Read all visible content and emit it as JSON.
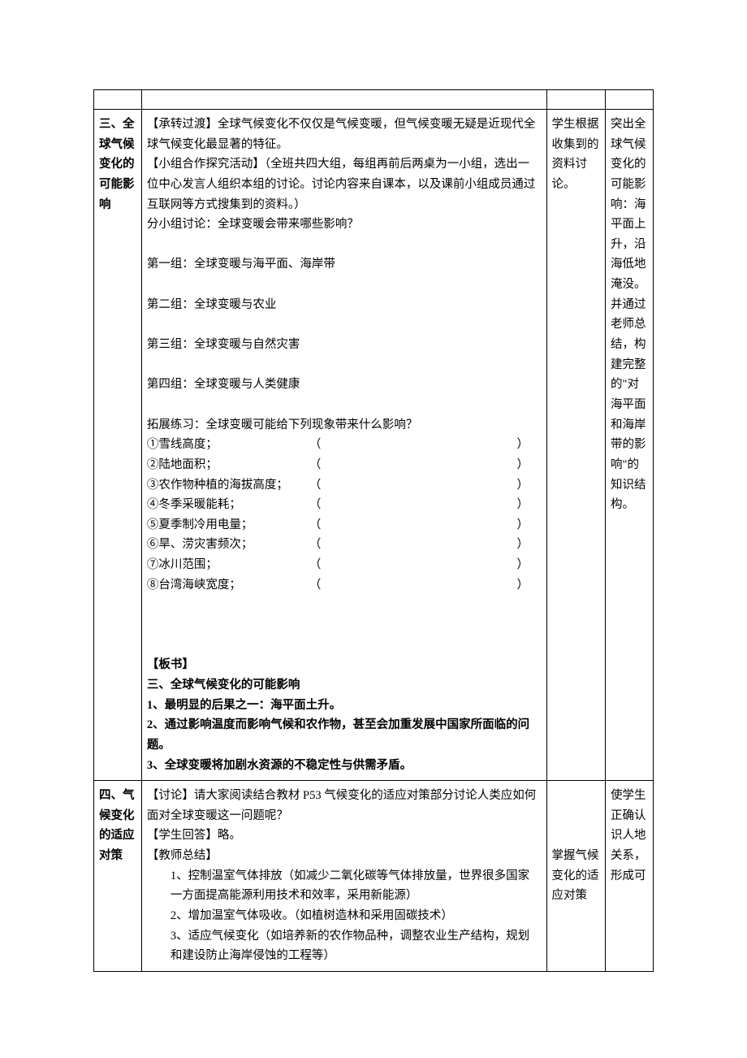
{
  "row1": {
    "col1": "三、全球气候变化的可能影响",
    "col2": {
      "p1": "【承转过渡】全球气候变化不仅仅是气候变暖，但气候变暖无疑是近现代全球气候变化最显著的特征。",
      "p2": "【小组合作探究活动】（全班共四大组，每组再前后两桌为一小组，选出一位中心发言人组织本组的讨论。讨论内容来自课本，以及课前小组成员通过互联网等方式搜集到的资料。）",
      "p3": "分小组讨论：全球变暖会带来哪些影响？",
      "g1": "第一组：全球变暖与海平面、海岸带",
      "g2": "第二组：全球变暖与农业",
      "g3": "第三组：全球变暖与自然灾害",
      "g4": "第四组：全球变暖与人类健康",
      "ex_intro": "拓展练习：全球变暖可能给下列现象带来什么影响？",
      "ex1": "①雪线高度；",
      "ex2": "②陆地面积；",
      "ex3": "③农作物种植的海拔高度；",
      "ex4": "④冬季采暖能耗；",
      "ex5": "⑤夏季制冷用电量；",
      "ex6": "⑥旱、涝灾害频次；",
      "ex7": "⑦冰川范围；",
      "ex8": "⑧台湾海峡宽度；",
      "open": "（",
      "close": "）",
      "bs_label": "【板书】",
      "bs_title": "三、全球气候变化的可能影响",
      "bs1": "1、最明显的后果之一：海平面土升。",
      "bs2": "2、通过影响温度而影响气候和农作物，甚至会加重发展中国家所面临的问题。",
      "bs3": "3、全球变暖将加剧水资源的不稳定性与供需矛盾。"
    },
    "col3": "学生根据收集到的资料讨论。",
    "col4": "突出全球气候变化的可能影响：海平面上升，沿海低地淹没。并通过老师总结，构建完整的\"对海平面和海岸带的影响\"的知识结构。"
  },
  "row2": {
    "col1": "四、气候变化的适应对策",
    "col2": {
      "p1": "【讨论】请大家阅读结合教材 P53 气候变化的适应对策部分讨论人类应如何面对全球变暖这一问题呢？",
      "p2": "【学生回答】略。",
      "p3": "【教师总结】",
      "i1": "1、控制温室气体排放（如减少二氧化碳等气体排放量，世界很多国家一方面提高能源利用技术和效率，采用新能源）",
      "i2": "2、增加温室气体吸收。（如植树造林和采用固碳技术）",
      "i3": "3、适应气候变化（如培养新的农作物品种，调整农业生产结构，规划和建设防止海岸侵蚀的工程等）"
    },
    "col3": "掌握气候变化的适应对策",
    "col4": "使学生正确认识人地关系，形成可"
  }
}
